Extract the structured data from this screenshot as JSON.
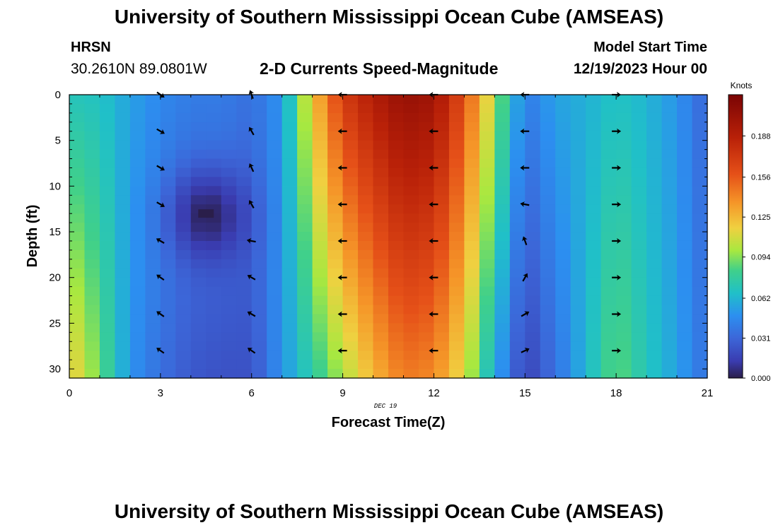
{
  "header": {
    "title": "University of Southern Mississippi Ocean Cube (AMSEAS)",
    "station": "HRSN",
    "coords": "30.2610N  89.0801W",
    "subtitle": "2-D Currents Speed-Magnitude",
    "model_start_label": "Model Start Time",
    "model_start_value": "12/19/2023 Hour 00"
  },
  "footer": {
    "title": "University of Southern Mississippi Ocean Cube (AMSEAS)"
  },
  "chart_data": {
    "type": "heatmap",
    "title": "2-D Currents Speed-Magnitude",
    "xlabel": "Forecast Time(Z)",
    "ylabel": "Depth (ft)",
    "date_label": "DEC 19",
    "xlim": [
      0,
      21
    ],
    "ylim": [
      31,
      0
    ],
    "x_ticks": [
      "0",
      "3",
      "6",
      "9",
      "12",
      "15",
      "18",
      "21"
    ],
    "y_ticks": [
      "0",
      "5",
      "10",
      "15",
      "20",
      "25",
      "30"
    ],
    "colorbar": {
      "label": "Knots",
      "range": [
        0,
        0.22
      ],
      "ticks": [
        "0.000",
        "0.031",
        "0.062",
        "0.094",
        "0.125",
        "0.156",
        "0.188"
      ]
    },
    "speed_profile": [
      {
        "hour": 0,
        "surface": 0.07,
        "bottom": 0.12
      },
      {
        "hour": 1,
        "surface": 0.068,
        "bottom": 0.09
      },
      {
        "hour": 2,
        "surface": 0.055,
        "bottom": 0.05
      },
      {
        "hour": 3,
        "surface": 0.045,
        "bottom": 0.035
      },
      {
        "hour": 4,
        "surface": 0.04,
        "bottom": 0.025
      },
      {
        "hour": 5,
        "surface": 0.04,
        "bottom": 0.022
      },
      {
        "hour": 6,
        "surface": 0.035,
        "bottom": 0.022
      },
      {
        "hour": 7,
        "surface": 0.05,
        "bottom": 0.05
      },
      {
        "hour": 8,
        "surface": 0.12,
        "bottom": 0.075
      },
      {
        "hour": 9,
        "surface": 0.17,
        "bottom": 0.1
      },
      {
        "hour": 10,
        "surface": 0.19,
        "bottom": 0.125
      },
      {
        "hour": 11,
        "surface": 0.205,
        "bottom": 0.145
      },
      {
        "hour": 12,
        "surface": 0.2,
        "bottom": 0.14
      },
      {
        "hour": 13,
        "surface": 0.16,
        "bottom": 0.11
      },
      {
        "hour": 14,
        "surface": 0.1,
        "bottom": 0.058
      },
      {
        "hour": 15,
        "surface": 0.04,
        "bottom": 0.015
      },
      {
        "hour": 16,
        "surface": 0.055,
        "bottom": 0.035
      },
      {
        "hour": 17,
        "surface": 0.06,
        "bottom": 0.062
      },
      {
        "hour": 18,
        "surface": 0.068,
        "bottom": 0.09
      },
      {
        "hour": 19,
        "surface": 0.062,
        "bottom": 0.07
      },
      {
        "hour": 20,
        "surface": 0.05,
        "bottom": 0.055
      },
      {
        "hour": 21,
        "surface": 0.03,
        "bottom": 0.035
      }
    ],
    "minimum_spot": {
      "hour": 4.5,
      "depth_ft": 13,
      "speed": 0.0
    },
    "arrow_hours": [
      3,
      6,
      9,
      12,
      15,
      18
    ],
    "arrow_depths": [
      0,
      4,
      8,
      12,
      16,
      20,
      24,
      28
    ],
    "arrow_directions_deg": [
      [
        -35,
        110,
        180,
        180,
        180,
        0
      ],
      [
        -30,
        120,
        180,
        180,
        180,
        0
      ],
      [
        -30,
        115,
        180,
        180,
        180,
        0
      ],
      [
        -30,
        120,
        180,
        180,
        170,
        0
      ],
      [
        150,
        170,
        180,
        180,
        110,
        0
      ],
      [
        145,
        150,
        180,
        180,
        60,
        0
      ],
      [
        145,
        150,
        180,
        180,
        30,
        0
      ],
      [
        145,
        145,
        180,
        180,
        25,
        0
      ]
    ]
  }
}
